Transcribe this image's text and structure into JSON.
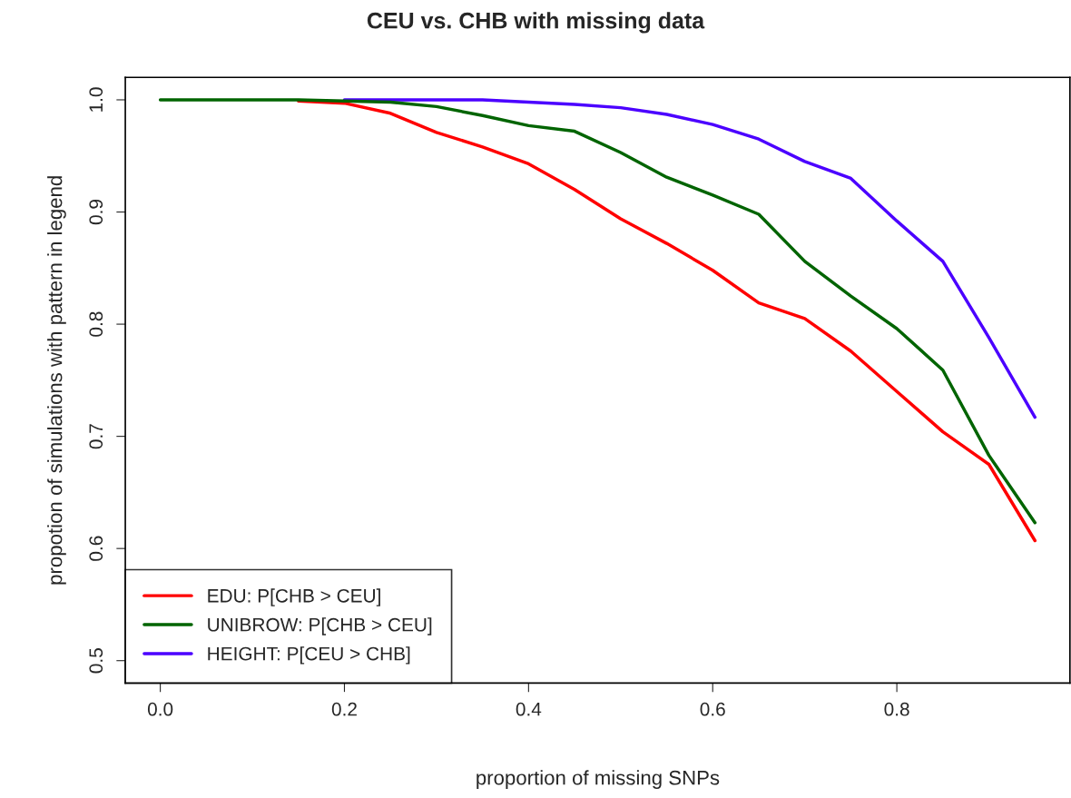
{
  "chart_data": {
    "type": "line",
    "title": "CEU vs. CHB with missing data",
    "xlabel": "proportion of missing SNPs",
    "ylabel": "propotion of simulations with pattern in legend",
    "x": [
      0,
      0.05,
      0.1,
      0.15,
      0.2,
      0.25,
      0.3,
      0.35,
      0.4,
      0.45,
      0.5,
      0.55,
      0.6,
      0.65,
      0.7,
      0.75,
      0.8,
      0.85,
      0.9,
      0.95
    ],
    "series": [
      {
        "name": "EDU: P[CHB > CEU]",
        "color": "#ff0000",
        "values": [
          null,
          null,
          null,
          0.999,
          0.997,
          0.988,
          0.971,
          0.958,
          0.943,
          0.92,
          0.894,
          0.872,
          0.848,
          0.819,
          0.805,
          0.776,
          0.74,
          0.704,
          0.675,
          0.607
        ]
      },
      {
        "name": "UNIBROW: P[CHB > CEU]",
        "color": "#006400",
        "values": [
          1.0,
          1.0,
          1.0,
          1.0,
          0.999,
          0.998,
          0.994,
          0.986,
          0.977,
          0.972,
          0.953,
          0.931,
          0.915,
          0.898,
          0.856,
          0.825,
          0.796,
          0.759,
          0.683,
          0.623
        ]
      },
      {
        "name": "HEIGHT: P[CEU > CHB]",
        "color": "#4b00ff",
        "values": [
          null,
          null,
          null,
          null,
          1.0,
          1.0,
          1.0,
          1.0,
          0.998,
          0.996,
          0.993,
          0.987,
          0.978,
          0.965,
          0.945,
          0.93,
          0.892,
          0.856,
          0.788,
          0.717
        ]
      }
    ],
    "xlim": [
      -0.038,
      0.988
    ],
    "xticks": [
      {
        "value": 0,
        "label": "0.0"
      },
      0.2,
      0.4,
      0.6,
      0.8
    ],
    "ylim": [
      0.48,
      1.02
    ],
    "yticks": [
      0.5,
      0.6,
      0.7,
      0.8,
      0.9,
      {
        "value": 1.0,
        "label": "1.0"
      }
    ],
    "legend": "bottom left",
    "grid": false,
    "line_style": "solid",
    "marker": "none"
  }
}
